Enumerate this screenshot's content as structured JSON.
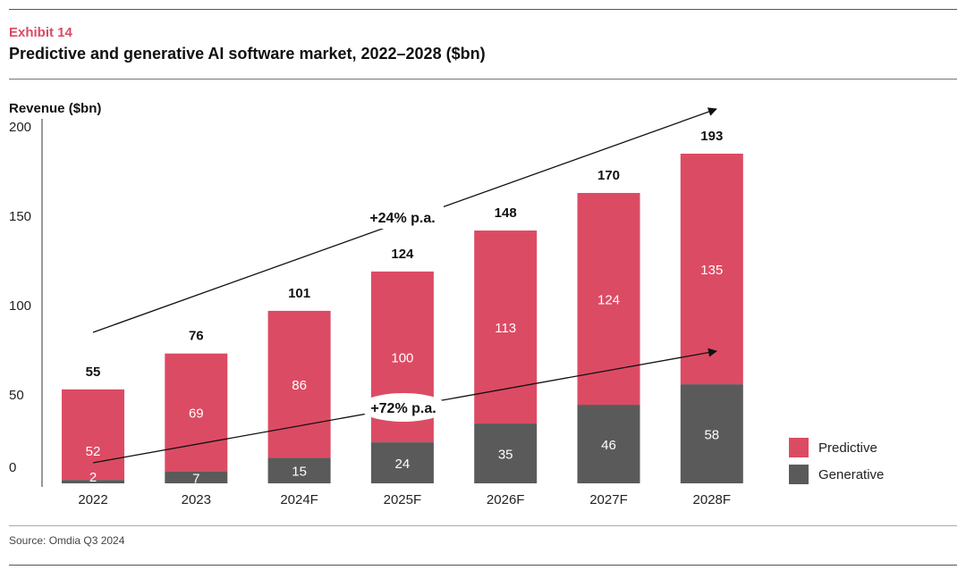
{
  "header": {
    "exhibit": "Exhibit  14",
    "title": "Predictive and generative AI software market, 2022–2028 ($bn)"
  },
  "footer": {
    "source": "Source: Omdia Q3 2024"
  },
  "colors": {
    "predictive": "#dc4b64",
    "generative": "#5a5a5a",
    "axis": "#333333"
  },
  "chart_data": {
    "type": "bar",
    "stacked": true,
    "title": "Predictive and generative AI software market, 2022–2028 ($bn)",
    "xlabel": "",
    "ylabel": "Revenue ($bn)",
    "ylim": [
      0,
      200
    ],
    "yticks": [
      0,
      50,
      100,
      150,
      200
    ],
    "categories": [
      "2022",
      "2023",
      "2024F",
      "2025F",
      "2026F",
      "2027F",
      "2028F"
    ],
    "series": [
      {
        "name": "Generative",
        "values": [
          2,
          7,
          15,
          24,
          35,
          46,
          58
        ]
      },
      {
        "name": "Predictive",
        "values": [
          52,
          69,
          86,
          100,
          113,
          124,
          135
        ]
      }
    ],
    "totals": [
      55,
      76,
      101,
      124,
      148,
      170,
      193
    ],
    "annotations": [
      {
        "label": "+24% p.a.",
        "target": "total"
      },
      {
        "label": "+72% p.a.",
        "target": "Generative"
      }
    ],
    "legend": {
      "position": "bottom-right",
      "entries": [
        "Predictive",
        "Generative"
      ]
    }
  }
}
